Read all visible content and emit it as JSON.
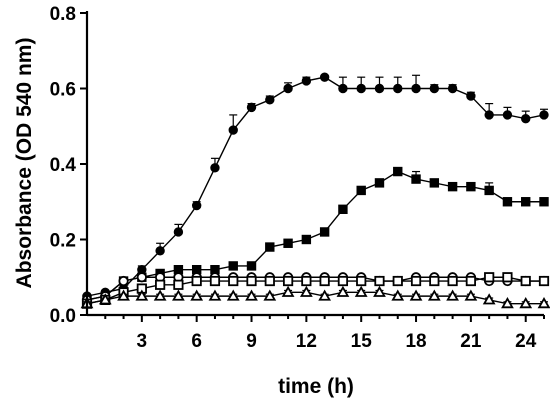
{
  "chart_data": {
    "type": "line",
    "xlabel": "time (h)",
    "ylabel": "Absorbance (OD 540 nm)",
    "xlim": [
      0,
      25
    ],
    "ylim": [
      0,
      0.8
    ],
    "x_ticks": [
      3,
      6,
      9,
      12,
      15,
      18,
      21,
      24
    ],
    "x_tick_labels": [
      "3",
      "6",
      "9",
      "12",
      "15",
      "18",
      "21",
      "24"
    ],
    "y_ticks": [
      0.0,
      0.2,
      0.4,
      0.6,
      0.8
    ],
    "y_tick_labels": [
      "0.0",
      "0.2",
      "0.4",
      "0.6",
      "0.8"
    ],
    "grid": false,
    "legend": "none",
    "x": [
      0,
      1,
      2,
      3,
      4,
      5,
      6,
      7,
      8,
      9,
      10,
      11,
      12,
      13,
      14,
      15,
      16,
      17,
      18,
      19,
      20,
      21,
      22,
      23,
      24,
      25
    ],
    "series": [
      {
        "marker": "filled-circle",
        "values": [
          0.05,
          0.06,
          0.07,
          0.12,
          0.17,
          0.22,
          0.29,
          0.39,
          0.49,
          0.55,
          0.57,
          0.6,
          0.62,
          0.63,
          0.6,
          0.6,
          0.6,
          0.6,
          0.6,
          0.6,
          0.6,
          0.58,
          0.53,
          0.53,
          0.52,
          0.53
        ],
        "errors": [
          0.005,
          0.005,
          0.01,
          0.01,
          0.02,
          0.02,
          0.01,
          0.025,
          0.04,
          0.01,
          0.01,
          0.015,
          0.01,
          0.005,
          0.03,
          0.03,
          0.03,
          0.03,
          0.035,
          0.01,
          0.01,
          0.01,
          0.03,
          0.02,
          0.02,
          0.015
        ]
      },
      {
        "marker": "filled-square",
        "values": [
          0.04,
          0.05,
          0.09,
          0.1,
          0.11,
          0.12,
          0.12,
          0.12,
          0.13,
          0.13,
          0.18,
          0.19,
          0.2,
          0.22,
          0.28,
          0.33,
          0.35,
          0.38,
          0.36,
          0.35,
          0.34,
          0.34,
          0.33,
          0.3,
          0.3,
          0.3
        ],
        "errors": [
          0.005,
          0.005,
          0.005,
          0.005,
          0.005,
          0.005,
          0.005,
          0.005,
          0.005,
          0.005,
          0.01,
          0.005,
          0.005,
          0.005,
          0.005,
          0.005,
          0.005,
          0.005,
          0.02,
          0.01,
          0.01,
          0.01,
          0.02,
          0.01,
          0.01,
          0.01
        ]
      },
      {
        "marker": "open-circle",
        "values": [
          0.04,
          0.05,
          0.09,
          0.1,
          0.1,
          0.1,
          0.1,
          0.1,
          0.1,
          0.1,
          0.1,
          0.1,
          0.1,
          0.1,
          0.1,
          0.1,
          0.09,
          0.09,
          0.1,
          0.1,
          0.1,
          0.1,
          0.09,
          0.09,
          0.09,
          0.09
        ],
        "errors": [
          0.005,
          0.005,
          0.005,
          0.005,
          0.005,
          0.005,
          0.005,
          0.005,
          0.005,
          0.005,
          0.005,
          0.005,
          0.005,
          0.005,
          0.005,
          0.005,
          0.005,
          0.005,
          0.005,
          0.005,
          0.005,
          0.005,
          0.005,
          0.005,
          0.005,
          0.005
        ]
      },
      {
        "marker": "open-square",
        "values": [
          0.03,
          0.04,
          0.06,
          0.07,
          0.08,
          0.08,
          0.09,
          0.09,
          0.09,
          0.09,
          0.09,
          0.09,
          0.09,
          0.09,
          0.09,
          0.09,
          0.09,
          0.09,
          0.09,
          0.09,
          0.09,
          0.09,
          0.1,
          0.1,
          0.09,
          0.09
        ],
        "errors": [
          0.005,
          0.005,
          0.005,
          0.005,
          0.005,
          0.005,
          0.005,
          0.005,
          0.005,
          0.005,
          0.005,
          0.005,
          0.005,
          0.005,
          0.005,
          0.005,
          0.005,
          0.005,
          0.005,
          0.005,
          0.005,
          0.005,
          0.005,
          0.005,
          0.005,
          0.005
        ]
      },
      {
        "marker": "open-triangle",
        "values": [
          0.03,
          0.04,
          0.05,
          0.05,
          0.05,
          0.05,
          0.05,
          0.05,
          0.05,
          0.05,
          0.05,
          0.06,
          0.06,
          0.05,
          0.06,
          0.06,
          0.06,
          0.05,
          0.05,
          0.05,
          0.05,
          0.05,
          0.04,
          0.03,
          0.03,
          0.03
        ],
        "errors": [
          0.005,
          0.005,
          0.005,
          0.005,
          0.005,
          0.005,
          0.005,
          0.005,
          0.005,
          0.005,
          0.005,
          0.005,
          0.005,
          0.005,
          0.005,
          0.005,
          0.005,
          0.005,
          0.005,
          0.005,
          0.005,
          0.005,
          0.005,
          0.005,
          0.005,
          0.005
        ]
      }
    ]
  }
}
